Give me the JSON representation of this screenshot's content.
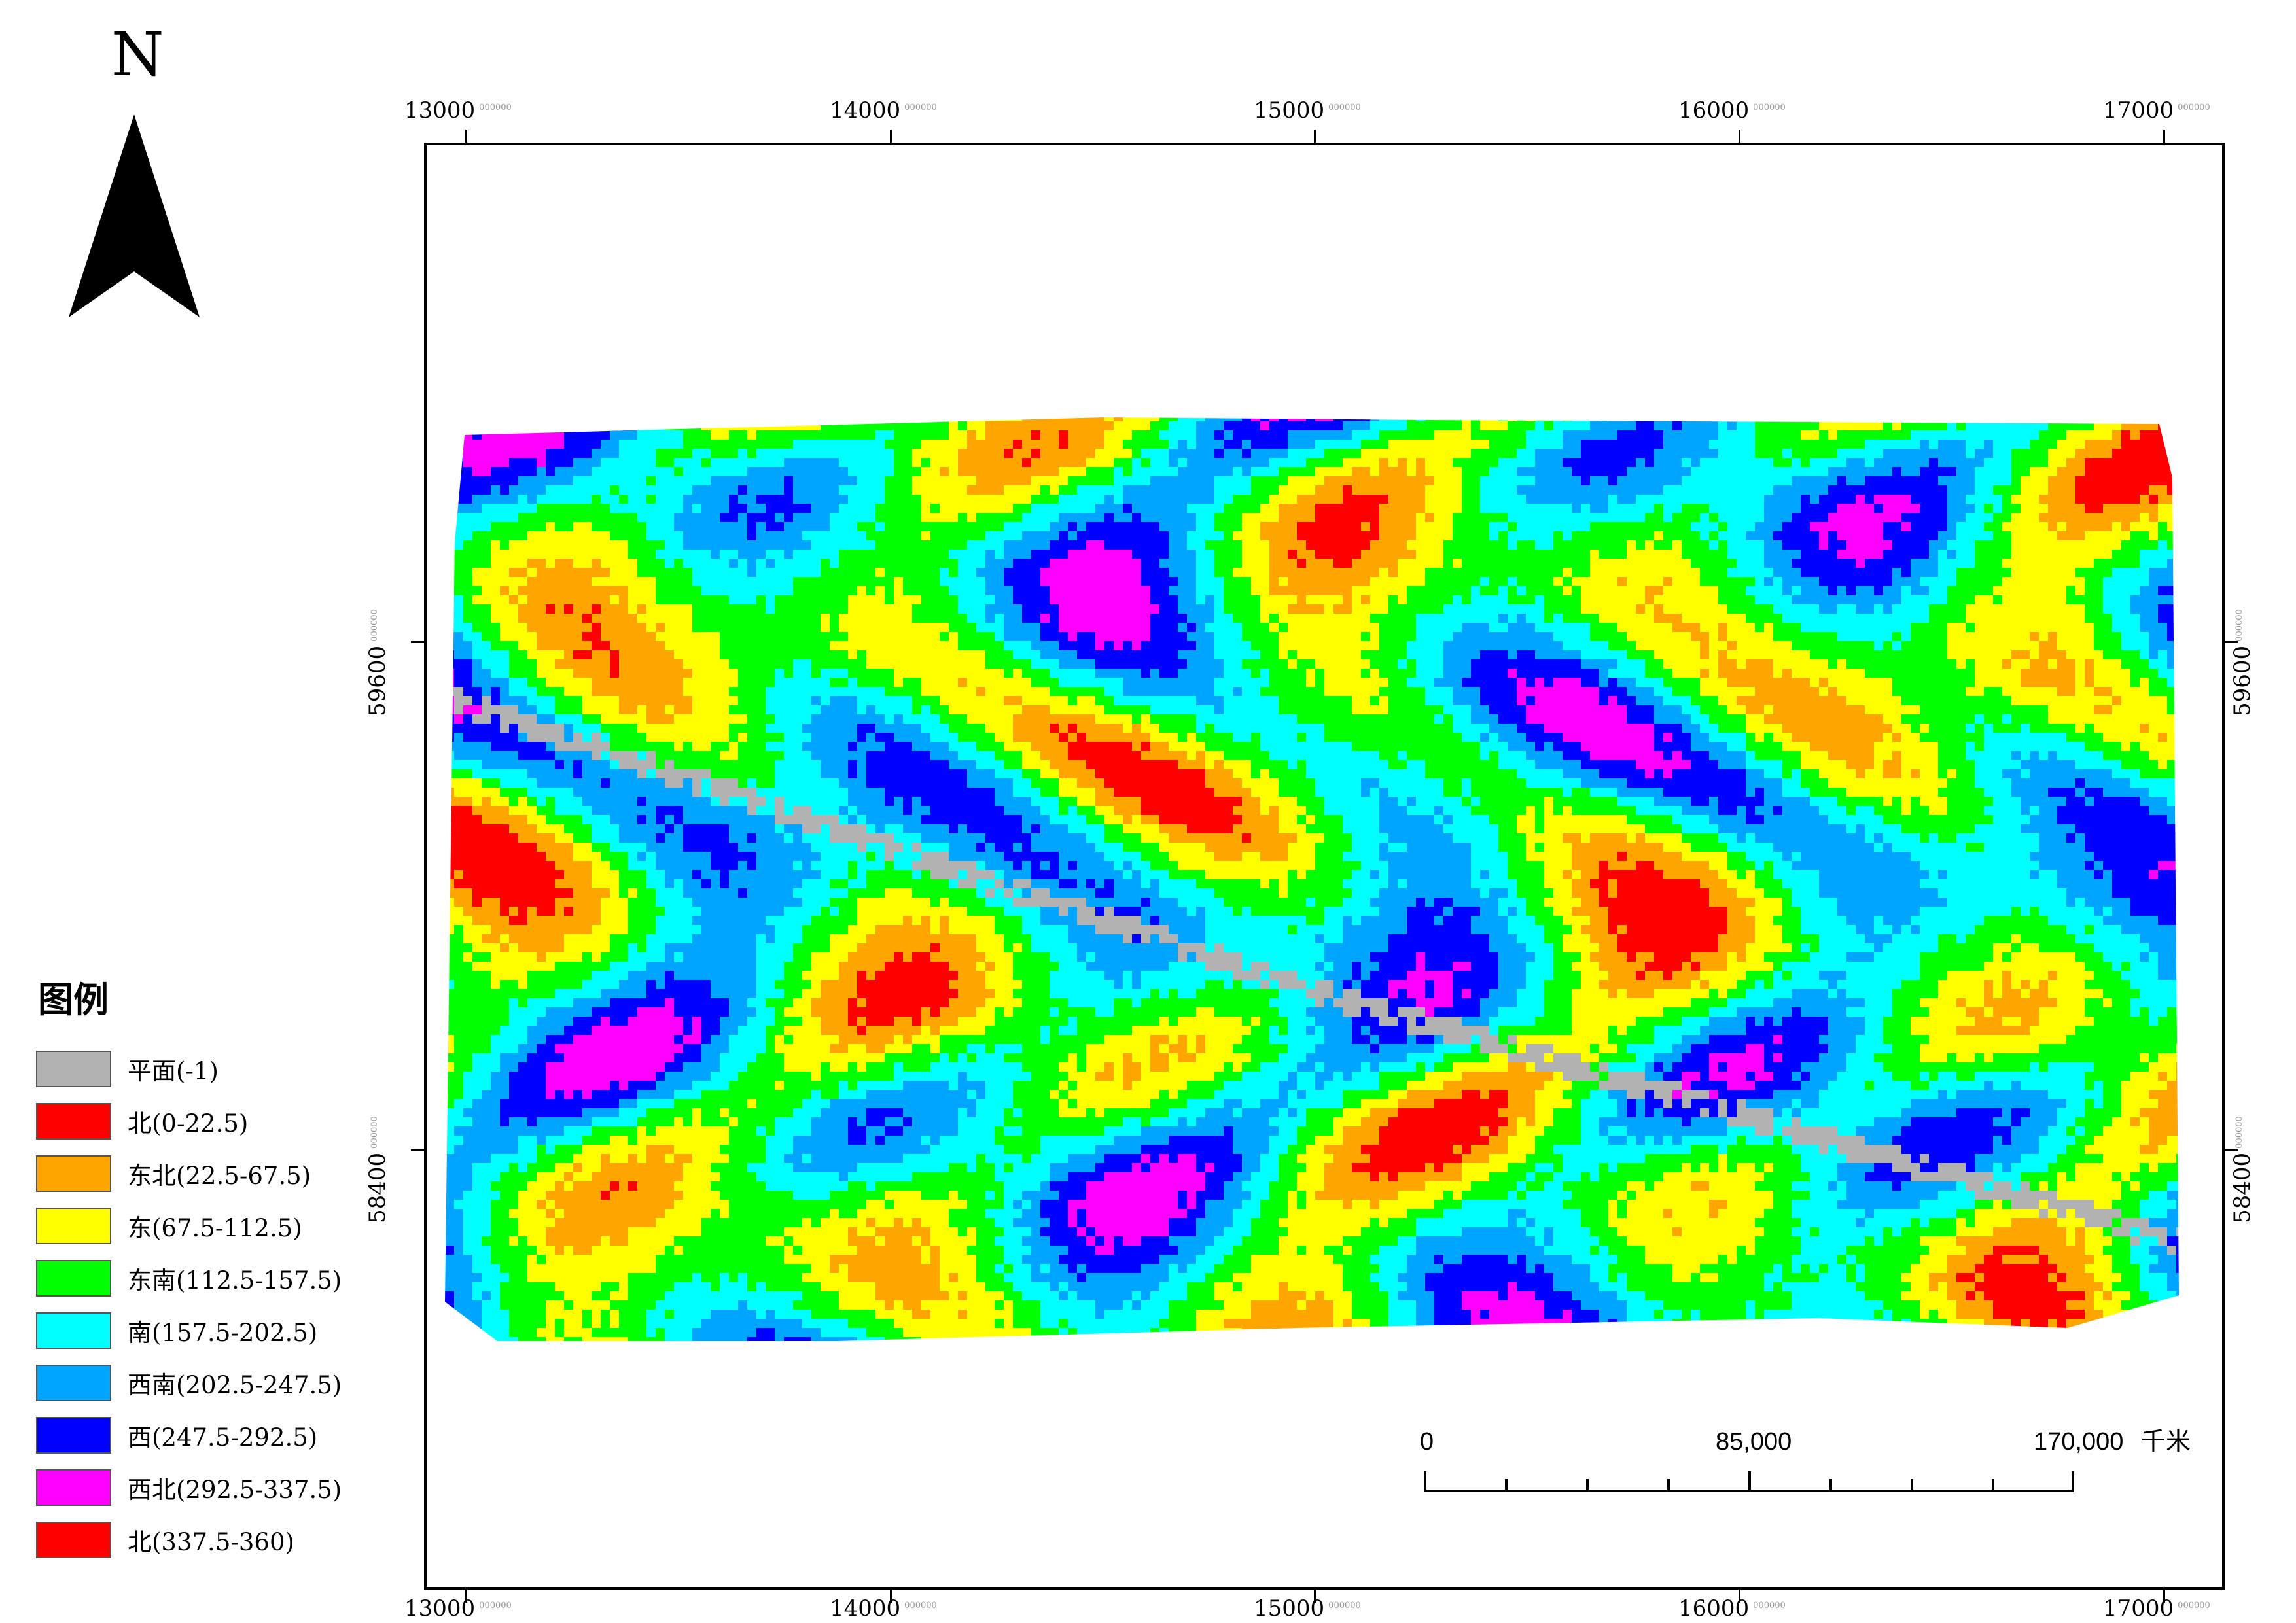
{
  "north": {
    "label": "N",
    "icon": "north-arrow-icon"
  },
  "axis": {
    "x_labels": [
      "13000",
      "14000",
      "15000",
      "16000",
      "17000"
    ],
    "y_labels": [
      "59600",
      "58400"
    ],
    "suffix": "000000"
  },
  "legend": {
    "title": "图例",
    "items": [
      {
        "label": "平面(-1)",
        "color": "#b2b2b2"
      },
      {
        "label": "北(0-22.5)",
        "color": "#ff0000"
      },
      {
        "label": "东北(22.5-67.5)",
        "color": "#ffa500"
      },
      {
        "label": "东(67.5-112.5)",
        "color": "#ffff00"
      },
      {
        "label": "东南(112.5-157.5)",
        "color": "#00ff00"
      },
      {
        "label": "南(157.5-202.5)",
        "color": "#00ffff"
      },
      {
        "label": "西南(202.5-247.5)",
        "color": "#00a5ff"
      },
      {
        "label": "西(247.5-292.5)",
        "color": "#0000ff"
      },
      {
        "label": "西北(292.5-337.5)",
        "color": "#ff00ff"
      },
      {
        "label": "北(337.5-360)",
        "color": "#ff0000"
      }
    ]
  },
  "scalebar": {
    "labels": [
      "0",
      "85,000",
      "170,000"
    ],
    "unit": "千米"
  }
}
